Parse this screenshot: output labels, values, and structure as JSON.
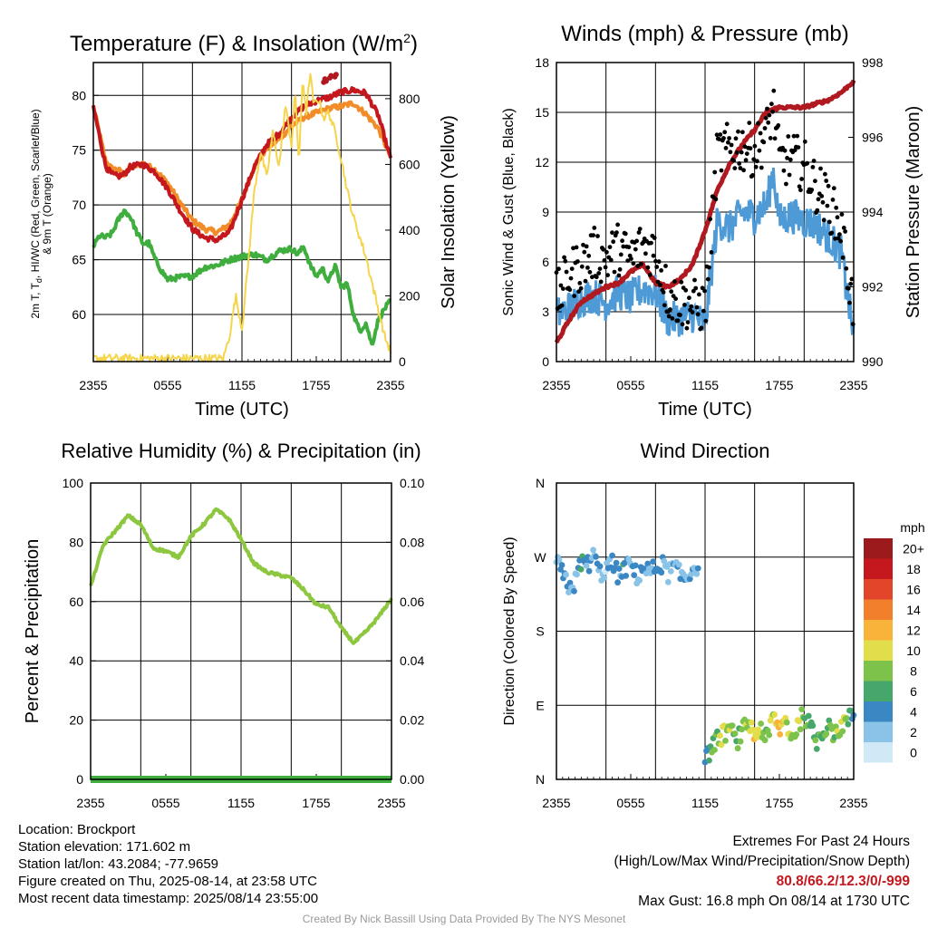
{
  "chart_data": [
    {
      "type": "line",
      "title": "Temperature (F) & Insolation (W/m",
      "title_sup": "2",
      "title_end": ")",
      "ylabel_lines": [
        "2m T, T",
        "d",
        ", HI/WC (Red, Green, Scarlet/Blue)",
        "& 9m T (Orange)"
      ],
      "ylabel2": "Solar Insolation (Yellow)",
      "xlabel": "Time (UTC)",
      "x_ticks": [
        "2355",
        "0555",
        "1155",
        "1755",
        "2355"
      ],
      "ylim": [
        55.7,
        83
      ],
      "y_ticks": [
        60,
        65,
        70,
        75,
        80
      ],
      "y2lim": [
        0,
        910
      ],
      "y2_ticks": [
        0,
        200,
        400,
        600,
        800
      ],
      "grid": true,
      "series": [
        {
          "color": "#f28c28",
          "hours": [
            0,
            1,
            1.5,
            2,
            2.5,
            3,
            4,
            5,
            6,
            7,
            8,
            9,
            10,
            11,
            12,
            13,
            14,
            15,
            16,
            17,
            18,
            19,
            20,
            21,
            22,
            23,
            24
          ],
          "values": [
            79,
            74,
            73.3,
            73.2,
            72.8,
            73.4,
            73.8,
            73.2,
            72,
            70.2,
            68.6,
            67.8,
            67.5,
            68.2,
            70.5,
            73.5,
            75.2,
            76,
            77.2,
            78,
            78.4,
            78.8,
            79,
            79.3,
            78.3,
            77,
            74.4
          ]
        },
        {
          "color": "#c4181e",
          "hours": [
            0,
            1,
            1.5,
            2,
            2.5,
            3,
            4,
            5,
            6,
            7,
            8,
            9,
            10,
            11,
            12,
            13,
            14,
            15,
            16,
            17,
            18,
            19,
            20,
            21,
            22,
            23,
            24
          ],
          "values": [
            79,
            73.5,
            72.8,
            72.6,
            72.8,
            73.5,
            73.7,
            73.0,
            71.5,
            69.5,
            67.8,
            67.0,
            66.8,
            67.5,
            70.5,
            73.5,
            75.5,
            76.5,
            78.0,
            79.0,
            79.5,
            79.8,
            80.3,
            80.5,
            80.2,
            78.2,
            74.2
          ]
        },
        {
          "color": "#3fae3f",
          "hours": [
            0,
            0.5,
            1,
            1.5,
            2,
            2.5,
            3,
            3.5,
            4,
            4.5,
            5,
            5.5,
            6,
            7,
            8,
            9,
            10,
            11,
            12,
            13,
            14,
            15,
            16,
            16.5,
            17,
            17.5,
            18,
            18.5,
            19,
            19.5,
            20,
            20.5,
            21,
            21.5,
            22,
            22.5,
            23,
            23.5,
            24
          ],
          "values": [
            66.2,
            67.2,
            67.0,
            67.4,
            68.6,
            69.5,
            68.9,
            67.5,
            66.5,
            66.5,
            65.0,
            64.0,
            63.2,
            63.4,
            63.5,
            64.3,
            64.5,
            65.0,
            65.3,
            65.5,
            65.0,
            65.8,
            66.0,
            65.5,
            66.2,
            64.5,
            63.5,
            64.2,
            63.0,
            64.5,
            62.5,
            62.8,
            60.0,
            58.5,
            59.2,
            57.2,
            59.5,
            60.5,
            61.2
          ]
        },
        {
          "color": "#f5d54b",
          "hours": [
            0,
            10.5,
            11,
            11.5,
            12,
            12.5,
            13,
            13.5,
            14,
            14.5,
            15,
            15.5,
            16,
            16.3,
            16.6,
            16.9,
            17.2,
            17.5,
            17.8,
            18.2,
            18.6,
            19,
            19.5,
            20,
            20.5,
            21,
            21.5,
            22,
            22.5,
            23,
            23.5,
            24
          ],
          "values": [
            10,
            10,
            80,
            200,
            100,
            300,
            520,
            640,
            560,
            700,
            590,
            780,
            660,
            820,
            600,
            860,
            760,
            880,
            780,
            800,
            740,
            760,
            700,
            620,
            520,
            440,
            380,
            320,
            240,
            160,
            80,
            30
          ],
          "axis": "right"
        }
      ],
      "point_series": [
        {
          "color": "#b0191f",
          "hours": [
            18.6,
            18.7,
            18.8,
            19.1,
            19.2,
            19.5,
            19.6
          ],
          "values": [
            81.2,
            81.5,
            81.3,
            81.6,
            81.8,
            81.7,
            81.9
          ]
        }
      ]
    },
    {
      "type": "line",
      "title": "Winds (mph) & Pressure (mb)",
      "ylabel": "Sonic Wind & Gust (Blue, Black)",
      "ylabel2": "Station Pressure (Maroon)",
      "xlabel": "Time (UTC)",
      "x_ticks": [
        "2355",
        "0555",
        "1155",
        "1755",
        "2355"
      ],
      "ylim": [
        0,
        18
      ],
      "y_ticks": [
        0,
        3,
        6,
        9,
        12,
        15,
        18
      ],
      "y2lim": [
        990,
        998
      ],
      "y2_ticks": [
        990,
        992,
        994,
        996,
        998
      ],
      "grid": true,
      "series": [
        {
          "color": "#4d9ad6",
          "name": "wind",
          "hours": [
            0,
            1,
            2,
            3,
            4,
            5,
            6,
            7,
            8,
            9,
            10,
            11,
            12,
            13,
            14,
            15,
            16,
            17,
            17.5,
            18,
            19,
            20,
            21,
            22,
            23,
            24
          ],
          "values": [
            2.8,
            3.2,
            3.8,
            4.0,
            3.5,
            4.2,
            3.8,
            4.4,
            4.2,
            2.5,
            2.6,
            2.8,
            2.2,
            8.5,
            8.0,
            9.0,
            8.8,
            9.5,
            11.5,
            8.5,
            8.8,
            8.5,
            8.2,
            7.5,
            6.5,
            1.5
          ]
        },
        {
          "color": "#b0191f",
          "name": "pressure",
          "axis": "right",
          "hours": [
            0,
            1,
            2,
            3,
            4,
            5,
            6,
            7,
            8,
            9,
            10,
            11,
            12,
            13,
            14,
            15,
            16,
            17,
            18,
            19,
            20,
            21,
            22,
            23,
            24
          ],
          "values": [
            990.5,
            991.1,
            991.6,
            991.8,
            992.0,
            992.1,
            992.4,
            992.6,
            992.1,
            992.0,
            992.2,
            992.6,
            993.5,
            994.6,
            995.3,
            995.8,
            996.2,
            996.7,
            996.8,
            996.8,
            996.8,
            996.9,
            997.0,
            997.2,
            997.5
          ]
        },
        {
          "color": "#000000",
          "name": "gust",
          "mode": "points",
          "hours": [
            0,
            1,
            2,
            3,
            4,
            5,
            6,
            7,
            8,
            9,
            10,
            11,
            12,
            13,
            14,
            15,
            16,
            17,
            17.5,
            18,
            19,
            20,
            21,
            22,
            23,
            24
          ],
          "values": [
            3.8,
            5.2,
            5.8,
            6.5,
            6.2,
            6.8,
            6.2,
            7.0,
            6.6,
            4.0,
            3.6,
            3.4,
            3.2,
            12.5,
            12.8,
            13.0,
            12.6,
            13.8,
            15.5,
            12.0,
            12.2,
            11.8,
            10.5,
            9.5,
            8.0,
            3.2
          ]
        }
      ]
    },
    {
      "type": "line",
      "title": "Relative Humidity (%) & Precipitation (in)",
      "ylabel": "Percent & Precipitation",
      "x_ticks": [
        "2355",
        "0555",
        "1155",
        "1755",
        "2355"
      ],
      "ylim": [
        0,
        100
      ],
      "y_ticks": [
        0,
        20,
        40,
        60,
        80,
        100
      ],
      "y2lim": [
        0,
        0.1
      ],
      "y2_ticks": [
        "0.00",
        "0.02",
        "0.04",
        "0.06",
        "0.08",
        "0.10"
      ],
      "grid": true,
      "series": [
        {
          "color": "#8dc63f",
          "name": "rh",
          "hours": [
            0,
            1,
            2,
            3,
            4,
            5,
            6,
            7,
            8,
            9,
            10,
            11,
            12,
            13,
            14,
            15,
            16,
            17,
            18,
            19,
            20,
            21,
            22,
            23,
            24
          ],
          "values": [
            65,
            79,
            84,
            89,
            86,
            78,
            77,
            75,
            82,
            86,
            91,
            88,
            81,
            73,
            70,
            69,
            68,
            64,
            59,
            58,
            51,
            46,
            50,
            55,
            61
          ]
        },
        {
          "color": "#3fae3f",
          "name": "precipitation",
          "axis": "right",
          "hours": [
            0,
            24
          ],
          "values": [
            0,
            0
          ]
        }
      ]
    },
    {
      "type": "scatter",
      "title": "Wind Direction",
      "ylabel": "Direction (Colored By Speed)",
      "x_ticks": [
        "2355",
        "0555",
        "1155",
        "1755",
        "2355"
      ],
      "y_ticks": [
        "N",
        "E",
        "S",
        "W",
        "N"
      ],
      "ylim": [
        0,
        360
      ],
      "grid": true,
      "colorbar_title": "mph",
      "colorbar_labels": [
        "0",
        "2",
        "4",
        "6",
        "8",
        "10",
        "12",
        "14",
        "16",
        "18",
        "20+"
      ],
      "colorbar_colors": [
        "#cfe9f7",
        "#89c3e8",
        "#3b87c4",
        "#47a76b",
        "#7dc24a",
        "#e2dd4a",
        "#f9b33a",
        "#f17f2b",
        "#e2452a",
        "#c4181e",
        "#9c1a1c"
      ],
      "segments": [
        {
          "hours": [
            0,
            0.5,
            1,
            1.5,
            2,
            2.5,
            3,
            3.5,
            4,
            4.5,
            5,
            5.5,
            6,
            6.5,
            7,
            7.5,
            8,
            8.5,
            9,
            9.5,
            10,
            10.5,
            11,
            11.5
          ],
          "directions": [
            265,
            248,
            235,
            238,
            265,
            260,
            272,
            250,
            255,
            262,
            248,
            255,
            262,
            246,
            258,
            252,
            256,
            262,
            250,
            258,
            248,
            244,
            256,
            262
          ],
          "speeds": [
            3,
            4,
            4,
            3,
            4,
            4,
            3,
            3,
            2,
            4,
            3,
            4,
            3,
            2,
            4,
            3,
            4,
            3,
            2,
            3,
            3,
            2,
            3,
            2
          ]
        },
        {
          "hours": [
            12,
            12.5,
            13,
            13.5,
            14,
            14.5,
            15,
            15.5,
            16,
            16.5,
            17,
            17.5,
            18,
            18.5,
            19,
            19.5,
            20,
            20.5,
            21,
            21.5,
            22,
            22.5,
            23,
            23.5,
            24
          ],
          "directions": [
            20,
            40,
            48,
            55,
            62,
            45,
            58,
            70,
            52,
            64,
            48,
            76,
            60,
            72,
            50,
            66,
            80,
            62,
            46,
            58,
            70,
            52,
            66,
            72,
            78
          ],
          "speeds": [
            4,
            7,
            8,
            9,
            8,
            7,
            8,
            9,
            10,
            8,
            7,
            10,
            11,
            9,
            8,
            9,
            8,
            7,
            8,
            6,
            7,
            8,
            9,
            7,
            4
          ]
        }
      ]
    }
  ],
  "location_label": "Location: Brockport",
  "elevation_label": "Station elevation: 171.602 m",
  "latlon_label": "Station lat/lon: 43.2084; -77.9659",
  "created_label": "Figure created on Thu, 2025-08-14, at 23:58 UTC",
  "recent_label": "Most recent data timestamp: 2025/08/14 23:55:00",
  "extremes_title": "Extremes For Past 24 Hours",
  "extremes_subtitle": "(High/Low/Max Wind/Precipitation/Snow Depth)",
  "extremes_values": "80.8/66.2/12.3/0/-999",
  "max_gust": "Max Gust: 16.8 mph On 08/14 at 1730 UTC",
  "credit": "Created By Nick Bassill Using Data Provided By The NYS Mesonet"
}
